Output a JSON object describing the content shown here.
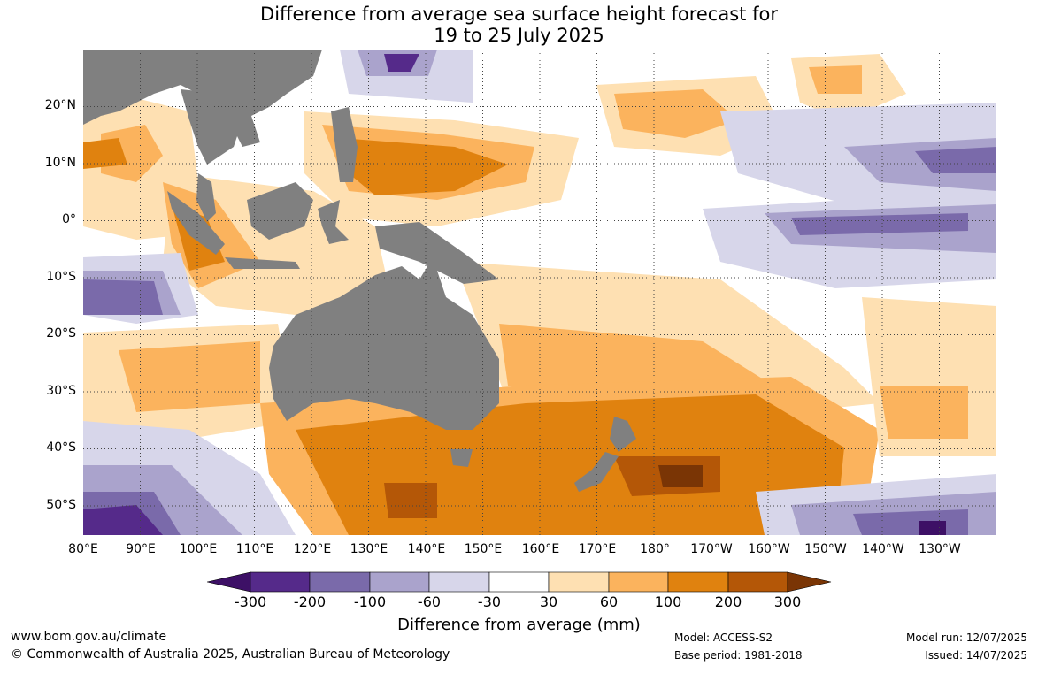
{
  "title_line1": "Difference from average sea surface height forecast for",
  "title_line2": "19 to 25 July 2025",
  "latitude_labels": [
    "20°N",
    "10°N",
    "0°",
    "10°S",
    "20°S",
    "30°S",
    "40°S",
    "50°S"
  ],
  "longitude_labels": [
    "80°E",
    "90°E",
    "100°E",
    "110°E",
    "120°E",
    "130°E",
    "140°E",
    "150°E",
    "160°E",
    "170°E",
    "180°",
    "170°W",
    "160°W",
    "150°W",
    "140°W",
    "130°W"
  ],
  "colorbar": {
    "title": "Difference from average (mm)",
    "ticks": [
      "-300",
      "-200",
      "-100",
      "-60",
      "-30",
      "30",
      "60",
      "100",
      "200",
      "300"
    ],
    "colors": [
      "#3d1066",
      "#552a8a",
      "#7a6aaa",
      "#aaa3cc",
      "#d7d6ea",
      "#ffffff",
      "#fee0b2",
      "#fbb35d",
      "#e0820f",
      "#b45707",
      "#7a3505"
    ]
  },
  "footer": {
    "website": "www.bom.gov.au/climate",
    "copyright": "© Commonwealth of Australia 2025, Australian Bureau of Meteorology",
    "model": "Model: ACCESS-S2",
    "base_period": "Base period: 1981-2018",
    "model_run": "Model run: 12/07/2025",
    "issued": "Issued: 14/07/2025"
  },
  "colors": {
    "land": "#808080",
    "grid": "#444444"
  }
}
